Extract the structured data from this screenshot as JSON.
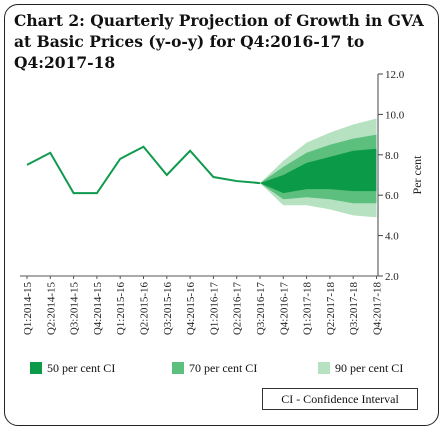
{
  "chart_data": {
    "type": "line",
    "title": "Chart 2: Quarterly Projection of Growth in GVA at Basic Prices (y-o-y) for Q4:2016-17 to Q4:2017-18",
    "ylabel": "Per cent",
    "ylim": [
      2.0,
      12.0
    ],
    "yticks": [
      "2.0",
      "4.0",
      "6.0",
      "8.0",
      "10.0",
      "12.0"
    ],
    "categories": [
      "Q1:2014-15",
      "Q2:2014-15",
      "Q3:2014-15",
      "Q4:2014-15",
      "Q1:2015-16",
      "Q2:2015-16",
      "Q3:2015-16",
      "Q4:2015-16",
      "Q1:2016-17",
      "Q2:2016-17",
      "Q3:2016-17",
      "Q4:2016-17",
      "Q1:2017-18",
      "Q2:2017-18",
      "Q3:2017-18",
      "Q4:2017-18"
    ],
    "series": [
      {
        "values": [
          7.5,
          8.1,
          6.1,
          6.1,
          7.8,
          8.4,
          7.0,
          8.2,
          6.9,
          6.7,
          6.6,
          null,
          null,
          null,
          null,
          null
        ]
      }
    ],
    "bands": [
      {
        "name": "90 per cent CI",
        "upper": [
          null,
          null,
          null,
          null,
          null,
          null,
          null,
          null,
          null,
          null,
          6.6,
          7.7,
          8.6,
          9.1,
          9.5,
          9.8
        ],
        "lower": [
          null,
          null,
          null,
          null,
          null,
          null,
          null,
          null,
          null,
          null,
          6.6,
          5.5,
          5.5,
          5.3,
          5.0,
          4.9
        ]
      },
      {
        "name": "70 per cent CI",
        "upper": [
          null,
          null,
          null,
          null,
          null,
          null,
          null,
          null,
          null,
          null,
          6.6,
          7.4,
          8.1,
          8.5,
          8.8,
          9.0
        ],
        "lower": [
          null,
          null,
          null,
          null,
          null,
          null,
          null,
          null,
          null,
          null,
          6.6,
          5.8,
          5.9,
          5.8,
          5.6,
          5.6
        ]
      },
      {
        "name": "50 per cent CI",
        "upper": [
          null,
          null,
          null,
          null,
          null,
          null,
          null,
          null,
          null,
          null,
          6.6,
          7.0,
          7.6,
          7.9,
          8.2,
          8.3
        ],
        "lower": [
          null,
          null,
          null,
          null,
          null,
          null,
          null,
          null,
          null,
          null,
          6.6,
          6.1,
          6.3,
          6.3,
          6.2,
          6.2
        ]
      }
    ],
    "colors": {
      "line": "#0f9a4e",
      "ci50": "#0b9a48",
      "ci70": "#5cbf7e",
      "ci90": "#b6e2c1"
    },
    "legend": [
      {
        "label": "50 per cent CI"
      },
      {
        "label": "70 per cent CI"
      },
      {
        "label": "90 per cent CI"
      }
    ],
    "note": "CI - Confidence Interval",
    "grid": false
  }
}
